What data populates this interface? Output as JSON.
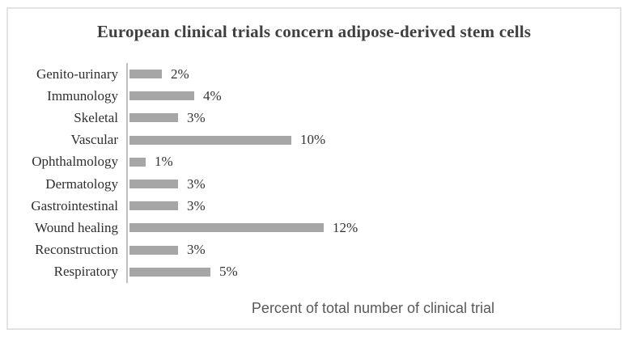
{
  "chart_data": {
    "type": "bar",
    "orientation": "horizontal",
    "title": "European clinical trials concern adipose-derived stem cells",
    "xlabel": "Percent of total number of clinical trial",
    "ylabel": "",
    "categories": [
      "Genito-urinary",
      "Immunology",
      "Skeletal",
      "Vascular",
      "Ophthalmology",
      "Dermatology",
      "Gastrointestinal",
      "Wound healing",
      "Reconstruction",
      "Respiratory"
    ],
    "values": [
      2,
      4,
      3,
      10,
      1,
      3,
      3,
      12,
      3,
      5
    ],
    "data_labels": [
      "2%",
      "4%",
      "3%",
      "10%",
      "1%",
      "3%",
      "3%",
      "12%",
      "3%",
      "5%"
    ],
    "xlim": [
      0,
      30
    ],
    "grid": false,
    "legend": false,
    "bar_color": "#a6a6a6",
    "axis_line_color": "#bfbfbf",
    "title_color": "#3f3f3f",
    "category_label_color": "#2e2e2e",
    "value_label_color": "#333333",
    "xlabel_color": "#595959",
    "frame_border_color": "#e3e3e3"
  }
}
